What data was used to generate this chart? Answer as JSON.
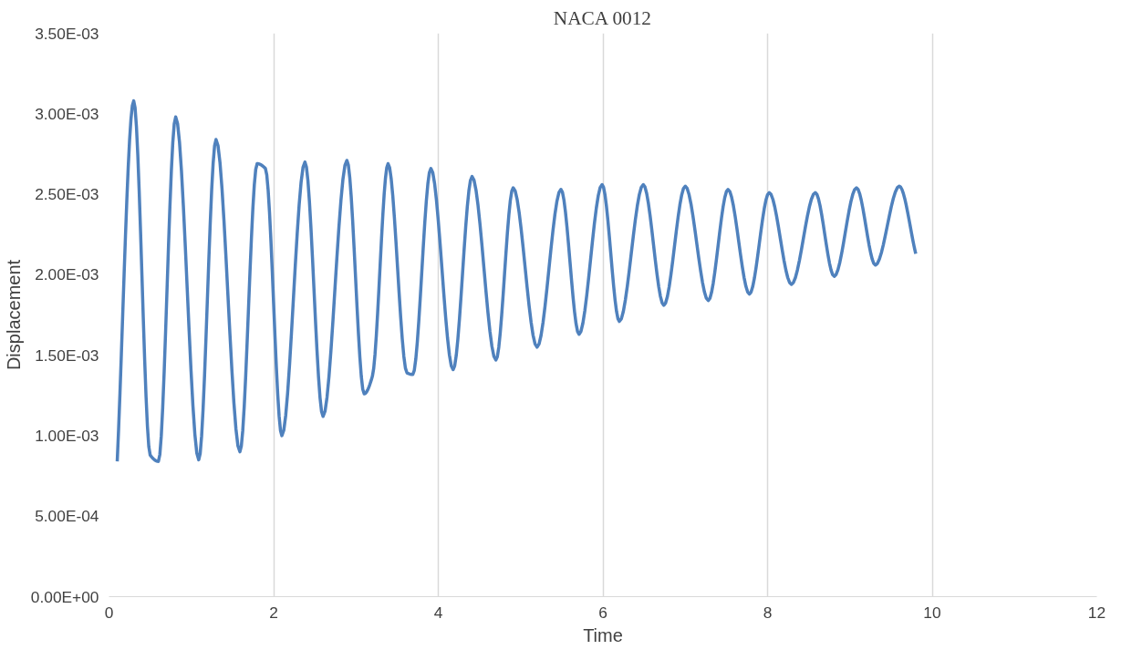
{
  "chart_data": {
    "type": "line",
    "title": "NACA 0012",
    "xlabel": "Time",
    "ylabel": "Displacement",
    "x": [
      0.1,
      0.3,
      0.5,
      0.6,
      0.81,
      1.09,
      1.3,
      1.59,
      1.8,
      1.9,
      2.1,
      2.38,
      2.6,
      2.89,
      3.1,
      3.2,
      3.39,
      3.62,
      3.69,
      3.91,
      4.18,
      4.41,
      4.7,
      4.91,
      5.2,
      5.49,
      5.71,
      5.99,
      6.2,
      6.49,
      6.74,
      7.0,
      7.28,
      7.52,
      7.78,
      8.02,
      8.29,
      8.58,
      8.81,
      9.08,
      9.31,
      9.6,
      9.8
    ],
    "series": [
      {
        "color": "#4f81bd",
        "values": [
          0.00084,
          0.00308,
          0.00088,
          0.00084,
          0.00298,
          0.00085,
          0.00284,
          0.0009,
          0.00269,
          0.00266,
          0.001,
          0.0027,
          0.00112,
          0.00271,
          0.00126,
          0.00137,
          0.00269,
          0.00139,
          0.00138,
          0.00266,
          0.00141,
          0.00261,
          0.00147,
          0.00254,
          0.00155,
          0.00253,
          0.00163,
          0.00256,
          0.00171,
          0.00256,
          0.00181,
          0.00255,
          0.00184,
          0.00253,
          0.00188,
          0.00251,
          0.00194,
          0.00251,
          0.00199,
          0.00254,
          0.00206,
          0.00255,
          0.00213
        ]
      }
    ],
    "xlim": [
      0,
      12
    ],
    "xticks": [
      0,
      2,
      4,
      6,
      8,
      10,
      12
    ],
    "ylim": [
      0,
      0.0035
    ],
    "yticks": [
      {
        "value": 0,
        "label": "0.00E+00"
      },
      {
        "value": 0.0005,
        "label": "5.00E-04"
      },
      {
        "value": 0.001,
        "label": "1.00E-03"
      },
      {
        "value": 0.0015,
        "label": "1.50E-03"
      },
      {
        "value": 0.002,
        "label": "2.00E-03"
      },
      {
        "value": 0.0025,
        "label": "2.50E-03"
      },
      {
        "value": 0.003,
        "label": "3.00E-03"
      },
      {
        "value": 0.0035,
        "label": "3.50E-03"
      }
    ],
    "grid": "x",
    "marker": "none",
    "line_style": "solid"
  }
}
